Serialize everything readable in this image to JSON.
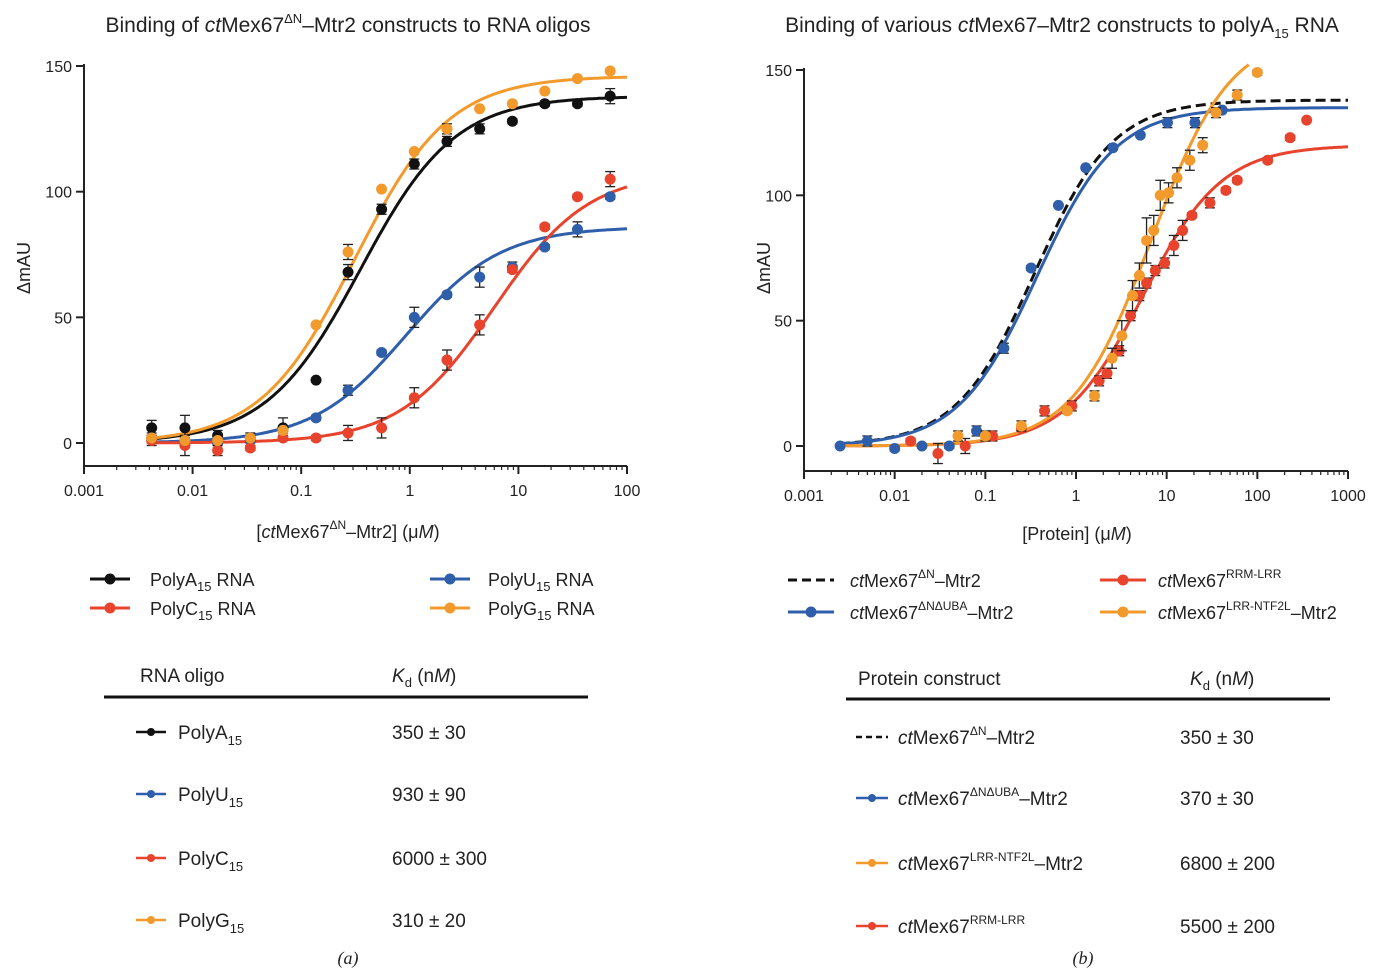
{
  "panels": [
    {
      "id": "a",
      "title_parts": [
        "Binding of ",
        "ct",
        "Mex67",
        "ΔN",
        "–Mtr2 constructs to RNA oligos"
      ],
      "xlabel_parts": [
        "[",
        "ct",
        "Mex67",
        "ΔN",
        "–Mtr2] (μ",
        "M",
        ")"
      ],
      "ylabel": "ΔmAU",
      "x_ticks": [
        "0.001",
        "0.01",
        "0.1",
        "1",
        "10",
        "100"
      ],
      "y_ticks": [
        "0",
        "50",
        "100",
        "150"
      ],
      "legend": [
        {
          "base": "PolyA",
          "sub": "15",
          "rest": " RNA"
        },
        {
          "base": "PolyU",
          "sub": "15",
          "rest": " RNA"
        },
        {
          "base": "PolyC",
          "sub": "15",
          "rest": " RNA"
        },
        {
          "base": "PolyG",
          "sub": "15",
          "rest": " RNA"
        }
      ],
      "table_header": {
        "col1": "RNA oligo",
        "col2_main": "K",
        "col2_sub": "d",
        "col2_unit_open": " (n",
        "col2_unit_it": "M",
        "col2_unit_close": ")"
      },
      "table_rows": [
        {
          "base": "PolyA",
          "sub": "15",
          "kd": "350 ± 30"
        },
        {
          "base": "PolyU",
          "sub": "15",
          "kd": "930 ± 90"
        },
        {
          "base": "PolyC",
          "sub": "15",
          "kd": "6000 ± 300"
        },
        {
          "base": "PolyG",
          "sub": "15",
          "kd": "310 ± 20"
        }
      ],
      "caption": "(a)"
    },
    {
      "id": "b",
      "title_parts": [
        "Binding of various ",
        "ct",
        "Mex67–Mtr2 constructs to polyA",
        "15",
        " RNA"
      ],
      "xlabel_parts": [
        "[Protein] (μ",
        "M",
        ")"
      ],
      "ylabel": "ΔmAU",
      "x_ticks": [
        "0.001",
        "0.01",
        "0.1",
        "1",
        "10",
        "100",
        "1000"
      ],
      "y_ticks": [
        "0",
        "50",
        "100",
        "150"
      ],
      "legend": [
        {
          "it": "ct",
          "base": "Mex67",
          "sup": "ΔN",
          "rest": "–Mtr2"
        },
        {
          "it": "ct",
          "base": "Mex67",
          "sup": "ΔNΔUBA",
          "rest": "–Mtr2"
        },
        {
          "it": "ct",
          "base": "Mex67",
          "sup": "RRM-LRR",
          "rest": ""
        },
        {
          "it": "ct",
          "base": "Mex67",
          "sup": "LRR-NTF2L",
          "rest": "–Mtr2"
        }
      ],
      "table_header": {
        "col1": "Protein construct",
        "col2_main": "K",
        "col2_sub": "d",
        "col2_unit_open": " (n",
        "col2_unit_it": "M",
        "col2_unit_close": ")"
      },
      "table_rows": [
        {
          "it": "ct",
          "base": "Mex67",
          "sup": "ΔN",
          "rest": "–Mtr2",
          "kd": "350 ± 30"
        },
        {
          "it": "ct",
          "base": "Mex67",
          "sup": "ΔNΔUBA",
          "rest": "–Mtr2",
          "kd": "370 ± 30"
        },
        {
          "it": "ct",
          "base": "Mex67",
          "sup": "LRR-NTF2L",
          "rest": "–Mtr2",
          "kd": "6800 ± 200"
        },
        {
          "it": "ct",
          "base": "Mex67",
          "sup": "RRM-LRR",
          "rest": "",
          "kd": "5500 ± 200"
        }
      ],
      "caption": "(b)"
    }
  ],
  "colors": {
    "black": "#111111",
    "blue": "#2f5faa",
    "red": "#e8432d",
    "orange": "#f39a2d"
  },
  "chart_data": [
    {
      "type": "scatter",
      "x_scale": "log",
      "xlim": [
        0.001,
        100
      ],
      "ylim": [
        0,
        150
      ],
      "series": [
        {
          "name": "PolyA15 RNA",
          "color": "#111111",
          "kd_uM": 0.35,
          "bmax": 138,
          "x": [
            0.0042,
            0.0085,
            0.017,
            0.034,
            0.068,
            0.137,
            0.27,
            0.55,
            1.1,
            2.2,
            4.4,
            8.8,
            17.5,
            35,
            70
          ],
          "y": [
            6,
            6,
            3,
            2,
            6,
            25,
            68,
            93,
            111,
            120,
            125,
            128,
            135,
            135,
            138
          ],
          "err": [
            3,
            5,
            2,
            2,
            4,
            0,
            3,
            2,
            2,
            2,
            2,
            1,
            1,
            1,
            3
          ]
        },
        {
          "name": "PolyU15 RNA",
          "color": "#2f5faa",
          "kd_uM": 0.93,
          "bmax": 86,
          "x": [
            0.0042,
            0.0085,
            0.017,
            0.034,
            0.068,
            0.137,
            0.27,
            0.55,
            1.1,
            2.2,
            4.4,
            8.8,
            17.5,
            35,
            70
          ],
          "y": [
            2,
            1,
            0,
            1,
            5,
            10,
            21,
            36,
            50,
            59,
            66,
            70,
            78,
            85,
            98
          ],
          "err": [
            2,
            2,
            2,
            2,
            2,
            1,
            2,
            1,
            4,
            1,
            4,
            2,
            1,
            3,
            1
          ]
        },
        {
          "name": "PolyC15 RNA",
          "color": "#e8432d",
          "kd_uM": 6.0,
          "bmax": 108,
          "x": [
            0.0042,
            0.0085,
            0.017,
            0.034,
            0.068,
            0.137,
            0.27,
            0.55,
            1.1,
            2.2,
            4.4,
            8.8,
            17.5,
            35,
            70
          ],
          "y": [
            1,
            -1,
            -3,
            -2,
            2,
            2,
            4,
            6,
            18,
            33,
            47,
            69,
            86,
            98,
            105
          ],
          "err": [
            2,
            4,
            2,
            1,
            1,
            1,
            3,
            4,
            4,
            4,
            4,
            1,
            1,
            1,
            3
          ]
        },
        {
          "name": "PolyG15 RNA",
          "color": "#f39a2d",
          "kd_uM": 0.31,
          "bmax": 146,
          "x": [
            0.0042,
            0.0085,
            0.017,
            0.034,
            0.068,
            0.137,
            0.27,
            0.55,
            1.1,
            2.2,
            4.4,
            8.8,
            17.5,
            35,
            70
          ],
          "y": [
            2,
            1,
            1,
            2,
            5,
            47,
            76,
            101,
            116,
            125,
            133,
            135,
            140,
            145,
            148
          ],
          "err": [
            1,
            1,
            1,
            1,
            1,
            0,
            3,
            0,
            0,
            2,
            0,
            0,
            0,
            0,
            0
          ]
        }
      ],
      "xlabel": "[ctMex67ΔN–Mtr2] (μM)",
      "ylabel": "ΔmAU"
    },
    {
      "type": "scatter",
      "x_scale": "log",
      "xlim": [
        0.001,
        1000
      ],
      "ylim": [
        0,
        150
      ],
      "series": [
        {
          "name": "ctMex67ΔN–Mtr2",
          "color": "#111111",
          "dashed": true,
          "kd_uM": 0.35,
          "bmax": 138,
          "x": [],
          "y": [],
          "err": []
        },
        {
          "name": "ctMex67ΔNΔUBA–Mtr2",
          "color": "#2f5faa",
          "kd_uM": 0.37,
          "bmax": 135,
          "x": [
            0.0025,
            0.005,
            0.01,
            0.02,
            0.04,
            0.08,
            0.16,
            0.32,
            0.64,
            1.28,
            2.56,
            5.12,
            10.2,
            20.5,
            41
          ],
          "y": [
            0,
            2,
            -1,
            0,
            0,
            6,
            39,
            71,
            96,
            111,
            119,
            124,
            129,
            129,
            134
          ],
          "err": [
            0,
            2,
            1,
            0,
            1,
            2,
            2,
            1,
            0,
            0,
            0,
            0,
            2,
            2,
            0
          ]
        },
        {
          "name": "ctMex67RRM-LRR",
          "color": "#e8432d",
          "kd_uM": 5.5,
          "bmax": 120,
          "x": [
            0.015,
            0.03,
            0.06,
            0.12,
            0.25,
            0.45,
            0.9,
            1.8,
            2.2,
            3.0,
            4.0,
            5.0,
            6.0,
            7.5,
            9.5,
            12,
            15,
            19,
            30,
            45,
            60,
            130,
            230,
            350
          ],
          "y": [
            2,
            -3,
            0,
            4,
            7,
            14,
            16,
            26,
            29,
            38,
            52,
            60,
            65,
            70,
            73,
            80,
            86,
            92,
            97,
            102,
            106,
            114,
            123,
            130
          ],
          "err": [
            1,
            4,
            3,
            2,
            1,
            2,
            2,
            2,
            2,
            2,
            2,
            2,
            2,
            2,
            2,
            4,
            4,
            1,
            2,
            1,
            1,
            1,
            1,
            0
          ]
        },
        {
          "name": "ctMex67LRR-NTF2L–Mtr2",
          "color": "#f39a2d",
          "kd_uM": 6.8,
          "bmax": 165,
          "x": [
            0.05,
            0.1,
            0.25,
            0.8,
            1.6,
            2.5,
            3.2,
            4.2,
            5.0,
            6.0,
            7.2,
            8.5,
            10.5,
            13,
            18,
            25,
            35,
            60,
            100
          ],
          "y": [
            4,
            4,
            8,
            14,
            20,
            35,
            44,
            60,
            68,
            82,
            86,
            100,
            101,
            107,
            114,
            120,
            133,
            140,
            149
          ],
          "err": [
            2,
            2,
            2,
            1,
            2,
            4,
            6,
            6,
            5,
            9,
            6,
            6,
            4,
            4,
            4,
            3,
            2,
            2,
            1
          ]
        }
      ],
      "xlabel": "[Protein] (μM)",
      "ylabel": "ΔmAU"
    }
  ]
}
